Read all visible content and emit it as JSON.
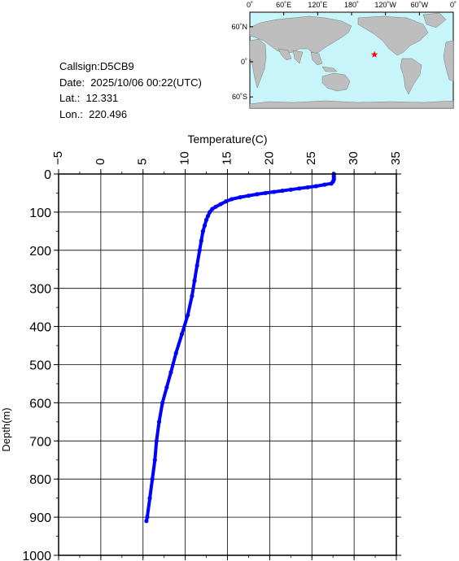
{
  "info": {
    "callsign": "Callsign:D5CB9",
    "date": "Date:  2025/10/06 00:22(UTC)",
    "lat": "Lat.:  12.331",
    "lon": "Lon.:  220.496"
  },
  "map": {
    "lon_labels": [
      "0˚",
      "60˚E",
      "120˚E",
      "180˚",
      "120˚W",
      "60˚W",
      "0˚"
    ],
    "lat_labels": [
      "60˚N",
      "0˚",
      "60˚S"
    ],
    "ocean_color": "#c8f5fa",
    "land_color": "#bebebe",
    "marker": {
      "lat": 12.331,
      "lon": 220.496,
      "color": "#ff0000",
      "icon": "star-icon"
    }
  },
  "chart_data": {
    "type": "line",
    "xlabel": "Temperature(C)",
    "ylabel": "Depth(m)",
    "xlim": [
      -5,
      35
    ],
    "ylim": [
      0,
      1000
    ],
    "y_inverted": true,
    "x_ticks": [
      "-5",
      "0",
      "5",
      "10",
      "15",
      "20",
      "25",
      "30",
      "35"
    ],
    "y_ticks": [
      "0",
      "100",
      "200",
      "300",
      "400",
      "500",
      "600",
      "700",
      "800",
      "900",
      "1000"
    ],
    "grid": true,
    "series_color": "#0000ff",
    "series": [
      {
        "profile": [
          [
            27.6,
            0
          ],
          [
            27.6,
            5
          ],
          [
            27.6,
            10
          ],
          [
            27.6,
            15
          ],
          [
            27.5,
            20
          ],
          [
            27.3,
            25
          ],
          [
            26.5,
            28
          ],
          [
            25.5,
            32
          ],
          [
            24.5,
            35
          ],
          [
            23.5,
            38
          ],
          [
            22.5,
            41
          ],
          [
            21.5,
            44
          ],
          [
            20.5,
            47
          ],
          [
            19.5,
            50
          ],
          [
            18.5,
            53
          ],
          [
            17.5,
            57
          ],
          [
            16.5,
            61
          ],
          [
            15.5,
            66
          ],
          [
            14.8,
            72
          ],
          [
            14.2,
            79
          ],
          [
            13.6,
            86
          ],
          [
            13.2,
            92
          ],
          [
            12.9,
            100
          ],
          [
            12.7,
            110
          ],
          [
            12.5,
            120
          ],
          [
            12.3,
            135
          ],
          [
            12.1,
            150
          ],
          [
            11.9,
            175
          ],
          [
            11.7,
            200
          ],
          [
            11.4,
            240
          ],
          [
            11.1,
            280
          ],
          [
            10.8,
            320
          ],
          [
            10.3,
            370
          ],
          [
            9.6,
            420
          ],
          [
            8.9,
            470
          ],
          [
            8.3,
            520
          ],
          [
            7.8,
            560
          ],
          [
            7.3,
            600
          ],
          [
            6.9,
            650
          ],
          [
            6.6,
            700
          ],
          [
            6.4,
            750
          ],
          [
            6.1,
            800
          ],
          [
            5.8,
            850
          ],
          [
            5.5,
            900
          ],
          [
            5.4,
            910
          ]
        ]
      }
    ]
  }
}
